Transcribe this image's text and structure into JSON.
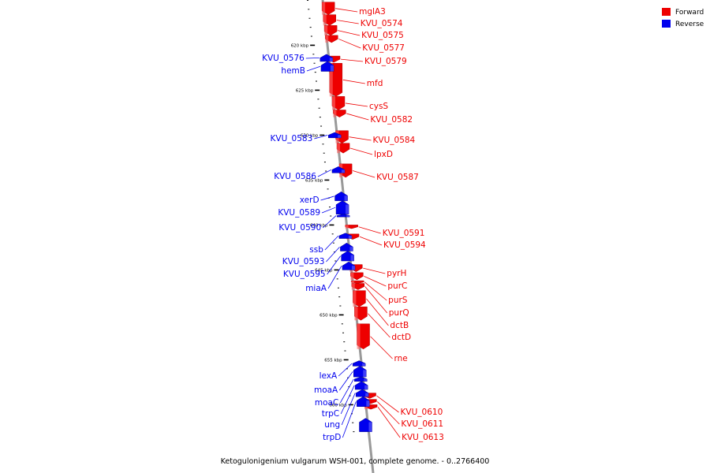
{
  "caption": "Ketogulonigenium vulgarum WSH-001, complete genome. - 0..2766400",
  "legend": [
    {
      "label": "Forward",
      "color": "#ee0000"
    },
    {
      "label": "Reverse",
      "color": "#0000ee"
    }
  ],
  "colors": {
    "forward": "#ee0000",
    "reverse": "#0000ee",
    "backbone": "#999999"
  },
  "axis": {
    "start_kbp": 615,
    "end_kbp": 663
  },
  "tick_labels": [
    {
      "kbp": 620,
      "text": "620 kbp"
    },
    {
      "kbp": 625,
      "text": "625 kbp"
    },
    {
      "kbp": 630,
      "text": "630 kbp"
    },
    {
      "kbp": 635,
      "text": "635 kbp"
    },
    {
      "kbp": 640,
      "text": "640 kbp"
    },
    {
      "kbp": 645,
      "text": "645 kbp"
    },
    {
      "kbp": 650,
      "text": "650 kbp"
    },
    {
      "kbp": 655,
      "text": "655 kbp"
    },
    {
      "kbp": 660,
      "text": "660 kbp"
    }
  ],
  "forward_genes": [
    {
      "name": "mglA3",
      "start": 615.2,
      "end": 616.6
    },
    {
      "name": "KVU_0574",
      "start": 616.6,
      "end": 617.8
    },
    {
      "name": "KVU_0575",
      "start": 617.8,
      "end": 618.9
    },
    {
      "name": "KVU_0577",
      "start": 618.9,
      "end": 619.7
    },
    {
      "name": "KVU_0579",
      "start": 621.2,
      "end": 621.9
    },
    {
      "name": "mfd",
      "start": 622.0,
      "end": 625.7
    },
    {
      "name": "cysS",
      "start": 625.7,
      "end": 627.2
    },
    {
      "name": "KVU_0582",
      "start": 627.2,
      "end": 628.0
    },
    {
      "name": "KVU_0584",
      "start": 629.5,
      "end": 630.9
    },
    {
      "name": "lpxD",
      "start": 630.9,
      "end": 632.0
    },
    {
      "name": "KVU_0587",
      "start": 633.2,
      "end": 634.7
    },
    {
      "name": "KVU_0591",
      "start": 640.0,
      "end": 640.4
    },
    {
      "name": "KVU_0594",
      "start": 641.0,
      "end": 641.6
    },
    {
      "name": "pyrH",
      "start": 644.4,
      "end": 645.2
    },
    {
      "name": "purC",
      "start": 645.3,
      "end": 646.1
    },
    {
      "name": "purS",
      "start": 646.2,
      "end": 646.5
    },
    {
      "name": "purQ",
      "start": 646.5,
      "end": 647.2
    },
    {
      "name": "dctB",
      "start": 647.3,
      "end": 649.1
    },
    {
      "name": "dctD",
      "start": 649.1,
      "end": 650.6
    },
    {
      "name": "rne",
      "start": 651.0,
      "end": 653.8
    },
    {
      "name": "KVU_0610",
      "start": 658.7,
      "end": 659.3
    },
    {
      "name": "KVU_0611",
      "start": 659.4,
      "end": 659.9
    },
    {
      "name": "KVU_0613",
      "start": 660.0,
      "end": 660.5
    }
  ],
  "reverse_genes": [
    {
      "name": "KVU_0576",
      "start": 621.0,
      "end": 621.8
    },
    {
      "name": "hemB",
      "start": 621.8,
      "end": 622.9
    },
    {
      "name": "KVU_0583",
      "start": 629.7,
      "end": 630.3
    },
    {
      "name": "KVU_0586",
      "start": 633.5,
      "end": 634.2
    },
    {
      "name": "xerD",
      "start": 636.3,
      "end": 637.3
    },
    {
      "name": "KVU_0589",
      "start": 637.3,
      "end": 638.8
    },
    {
      "name": "KVU_0590",
      "start": 638.8,
      "end": 639.1
    },
    {
      "name": "ssb",
      "start": 640.9,
      "end": 641.5
    },
    {
      "name": "KVU_0593",
      "start": 642.0,
      "end": 642.9
    },
    {
      "name": "KVU_0595",
      "start": 642.9,
      "end": 644.0
    },
    {
      "name": "miaA",
      "start": 644.1,
      "end": 645.0
    },
    {
      "name": "lexA",
      "start": 655.1,
      "end": 655.7
    },
    {
      "name": "moaA",
      "start": 655.7,
      "end": 656.9
    },
    {
      "name": "moaC",
      "start": 656.9,
      "end": 657.4
    },
    {
      "name": "trpC",
      "start": 657.4,
      "end": 658.3
    },
    {
      "name": "ung",
      "start": 658.3,
      "end": 659.1
    },
    {
      "name": "trpD",
      "start": 659.1,
      "end": 660.2
    },
    {
      "name": "",
      "start": 661.5,
      "end": 663.0
    }
  ]
}
